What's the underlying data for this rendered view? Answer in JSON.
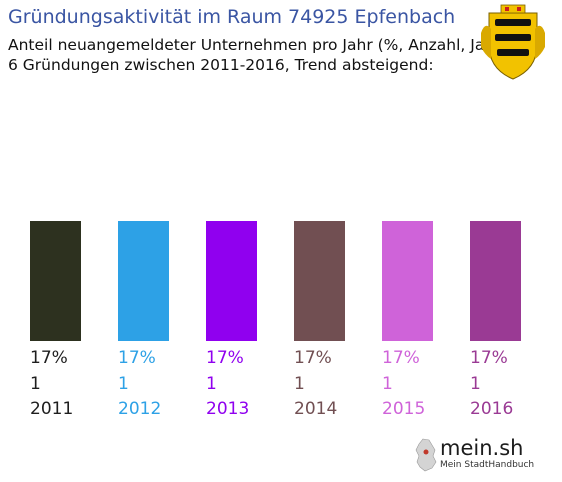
{
  "header": {
    "title": "Gründungsaktivität im Raum 74925 Epfenbach",
    "subtitle_line1": "Anteil neuangemeldeter Unternehmen pro Jahr (%, Anzahl, Jahr)",
    "subtitle_line2": "6 Gründungen zwischen 2011-2016, Trend absteigend:"
  },
  "emblem": {
    "icon": "coat-of-arms-icon",
    "colors": {
      "gold": "#f2c200",
      "black": "#111111",
      "red": "#cc1f1f"
    }
  },
  "logo": {
    "text": "mein.sh",
    "subtitle": "Mein StadtHandbuch",
    "icon": "germany-map-icon",
    "accent": "#c0392b"
  },
  "chart_data": {
    "type": "bar",
    "categories": [
      "2011",
      "2012",
      "2013",
      "2014",
      "2015",
      "2016"
    ],
    "values": [
      17,
      17,
      17,
      17,
      17,
      17
    ],
    "counts": [
      1,
      1,
      1,
      1,
      1,
      1
    ],
    "percent_labels": [
      "17%",
      "17%",
      "17%",
      "17%",
      "17%",
      "17%"
    ],
    "count_labels": [
      "1",
      "1",
      "1",
      "1",
      "1",
      "1"
    ],
    "colors": [
      "#2d311f",
      "#2da1e6",
      "#9000ef",
      "#714f52",
      "#cf63d9",
      "#9a3a94"
    ],
    "unit": "%",
    "title": "Gründungsaktivität im Raum 74925 Epfenbach",
    "xlabel": "",
    "ylabel": "",
    "grid": false,
    "legend": "none"
  }
}
